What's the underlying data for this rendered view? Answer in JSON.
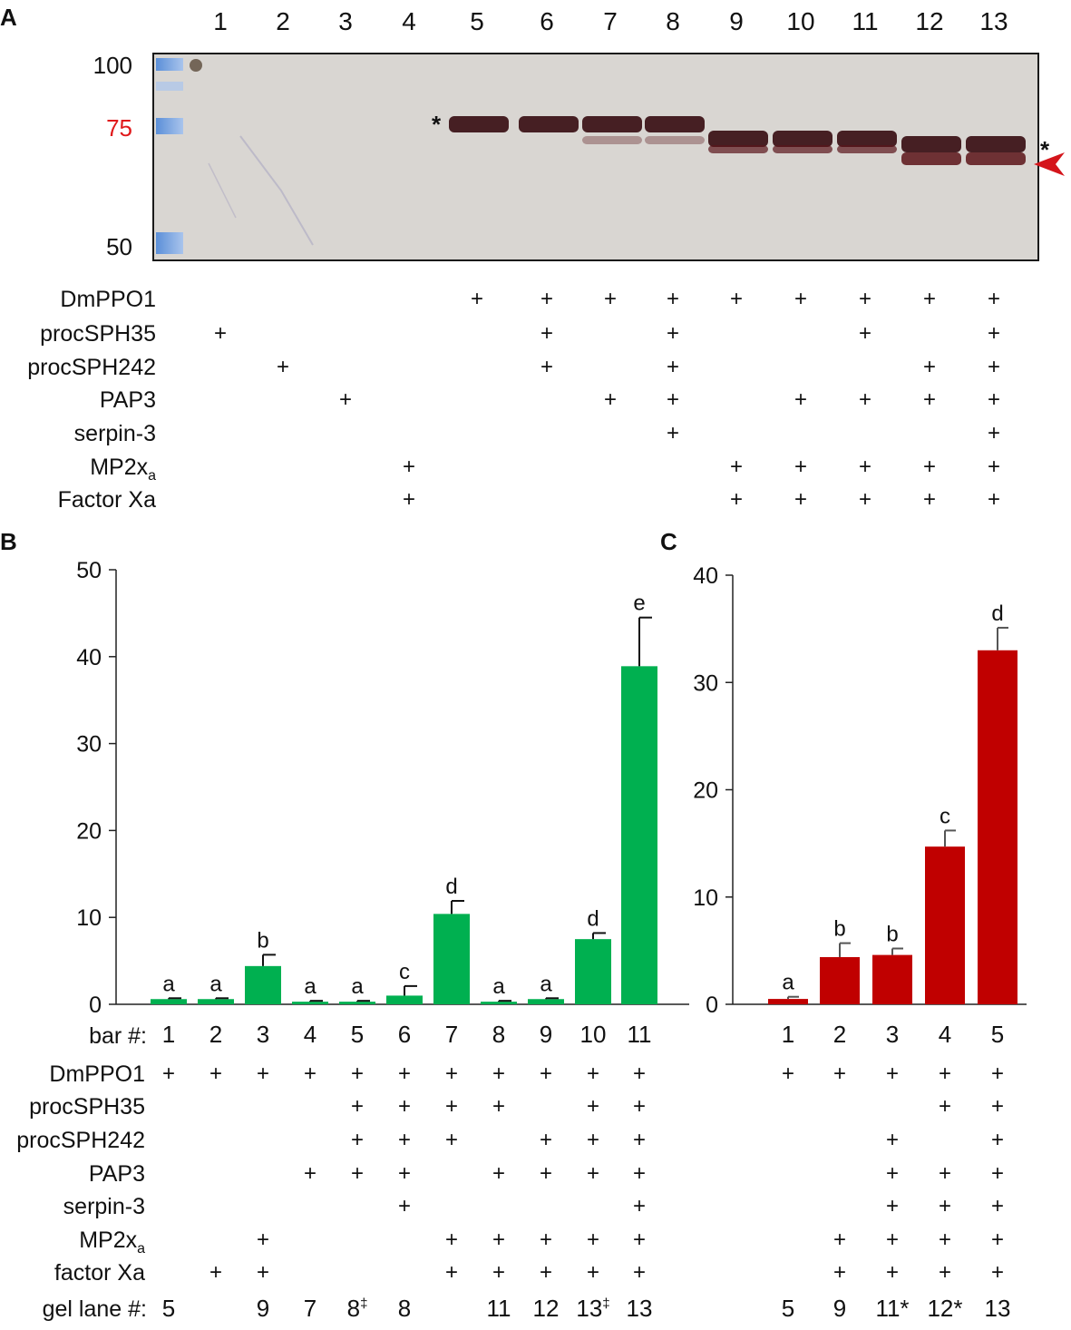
{
  "panelA": {
    "label": "A",
    "lanes": [
      "1",
      "2",
      "3",
      "4",
      "5",
      "6",
      "7",
      "8",
      "9",
      "10",
      "11",
      "12",
      "13"
    ],
    "markers": [
      {
        "text": "100",
        "color": "#111111"
      },
      {
        "text": "75",
        "color": "#e0191b"
      },
      {
        "text": "50",
        "color": "#111111"
      }
    ],
    "band_star": "*",
    "right_star": "*",
    "arrowhead_color": "#d4151b",
    "rows": [
      {
        "label": "DmPPO1",
        "plus": [
          5,
          6,
          7,
          8,
          9,
          10,
          11,
          12,
          13
        ]
      },
      {
        "label": "procSPH35",
        "plus": [
          1,
          6,
          8,
          11,
          13
        ]
      },
      {
        "label": "procSPH242",
        "plus": [
          2,
          6,
          8,
          12,
          13
        ]
      },
      {
        "label": "PAP3",
        "plus": [
          3,
          7,
          8,
          10,
          11,
          12,
          13
        ]
      },
      {
        "label": "serpin-3",
        "plus": [
          8,
          13
        ]
      },
      {
        "label": "MP2x",
        "sub": "a",
        "plus": [
          4,
          9,
          10,
          11,
          12,
          13
        ]
      },
      {
        "label": "Factor Xa",
        "plus": [
          4,
          9,
          10,
          11,
          12,
          13
        ]
      }
    ],
    "plus_symbol": "+"
  },
  "panelB": {
    "label": "B",
    "chart_data": {
      "type": "bar",
      "categories": [
        "1",
        "2",
        "3",
        "4",
        "5",
        "6",
        "7",
        "8",
        "9",
        "10",
        "11"
      ],
      "values": [
        0.6,
        0.6,
        4.4,
        0.3,
        0.3,
        1.0,
        10.4,
        0.3,
        0.6,
        7.5,
        38.9
      ],
      "errors": [
        0.1,
        0.1,
        1.3,
        0.1,
        0.1,
        1.1,
        1.5,
        0.1,
        0.1,
        0.7,
        5.6
      ],
      "letters": [
        "a",
        "a",
        "b",
        "a",
        "a",
        "c",
        "d",
        "a",
        "a",
        "d",
        "e"
      ],
      "ylim": [
        0,
        50
      ],
      "yticks": [
        0,
        10,
        20,
        30,
        40,
        50
      ],
      "bar_color": "#00b050"
    },
    "bar_label": "bar #:",
    "rows": [
      {
        "label": "DmPPO1",
        "plus": [
          1,
          2,
          3,
          4,
          5,
          6,
          7,
          8,
          9,
          10,
          11
        ]
      },
      {
        "label": "procSPH35",
        "plus": [
          5,
          6,
          7,
          8,
          10,
          11
        ]
      },
      {
        "label": "procSPH242",
        "plus": [
          5,
          6,
          7,
          9,
          10,
          11
        ]
      },
      {
        "label": "PAP3",
        "plus": [
          4,
          5,
          6,
          8,
          9,
          10,
          11
        ]
      },
      {
        "label": "serpin-3",
        "plus": [
          6,
          11
        ]
      },
      {
        "label": "MP2x",
        "sub": "a",
        "plus": [
          3,
          7,
          8,
          9,
          10,
          11
        ]
      },
      {
        "label": "factor Xa",
        "plus": [
          2,
          3,
          7,
          8,
          9,
          10,
          11
        ]
      }
    ],
    "gel_label": "gel lane #:",
    "gel_lanes": [
      {
        "bar": 1,
        "text": "5",
        "sup": ""
      },
      {
        "bar": 3,
        "text": "9",
        "sup": ""
      },
      {
        "bar": 4,
        "text": "7",
        "sup": ""
      },
      {
        "bar": 5,
        "text": "8",
        "sup": "‡"
      },
      {
        "bar": 6,
        "text": "8",
        "sup": ""
      },
      {
        "bar": 8,
        "text": "11",
        "sup": ""
      },
      {
        "bar": 9,
        "text": "12",
        "sup": ""
      },
      {
        "bar": 10,
        "text": "13",
        "sup": "‡"
      },
      {
        "bar": 11,
        "text": "13",
        "sup": ""
      }
    ]
  },
  "panelC": {
    "label": "C",
    "chart_data": {
      "type": "bar",
      "categories": [
        "1",
        "2",
        "3",
        "4",
        "5"
      ],
      "values": [
        0.5,
        4.4,
        4.6,
        14.7,
        33.0
      ],
      "errors": [
        0.2,
        1.3,
        0.6,
        1.5,
        2.1
      ],
      "letters": [
        "a",
        "b",
        "b",
        "c",
        "d"
      ],
      "ylim": [
        0,
        40
      ],
      "yticks": [
        0,
        10,
        20,
        30,
        40
      ],
      "bar_color": "#c00000"
    },
    "rows": [
      {
        "plus": [
          1,
          2,
          3,
          4,
          5
        ]
      },
      {
        "plus": [
          4,
          5
        ]
      },
      {
        "plus": [
          3,
          5
        ]
      },
      {
        "plus": [
          3,
          4,
          5
        ]
      },
      {
        "plus": [
          3,
          4,
          5
        ]
      },
      {
        "plus": [
          2,
          3,
          4,
          5
        ]
      },
      {
        "plus": [
          2,
          3,
          4,
          5
        ]
      }
    ],
    "gel_lanes": [
      "5",
      "9",
      "11*",
      "12*",
      "13"
    ]
  }
}
